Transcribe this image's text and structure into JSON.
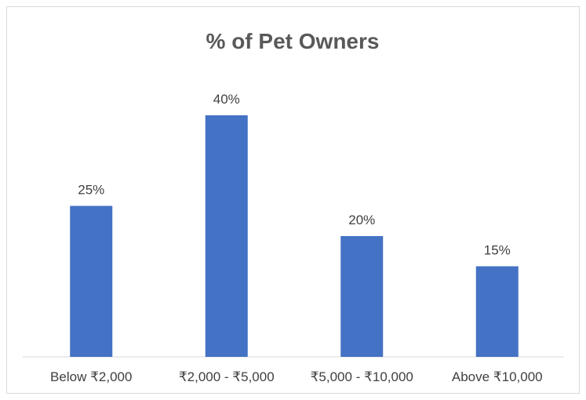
{
  "chart_data": {
    "type": "bar",
    "title": "% of Pet Owners",
    "categories": [
      "Below ₹2,000",
      "₹2,000 - ₹5,000",
      "₹5,000 - ₹10,000",
      "Above ₹10,000"
    ],
    "values": [
      25,
      40,
      20,
      15
    ],
    "data_labels": [
      "25%",
      "40%",
      "20%",
      "15%"
    ],
    "ylim": [
      0,
      45
    ],
    "grid": false,
    "legend": "none",
    "bar_color": "#4472C4",
    "xlabel": "",
    "ylabel": ""
  }
}
